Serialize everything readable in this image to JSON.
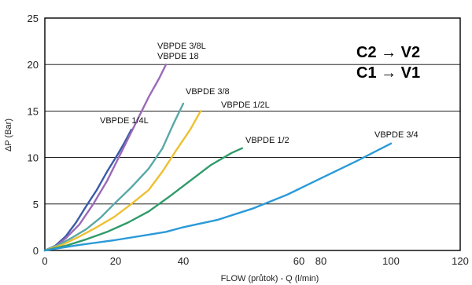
{
  "chart_data": {
    "type": "line",
    "xlabel": "FLOW (průtok) - Q (l/min)",
    "ylabel": "ΔP (Bar)",
    "ylim": [
      0,
      25
    ],
    "grid": "horizontal",
    "x_tick_labels": [
      "0",
      "20",
      "40",
      "60",
      "80",
      "100",
      "120"
    ],
    "y_tick_labels": [
      "0",
      "5",
      "10",
      "15",
      "20",
      "25"
    ],
    "annotations": [
      "C2 → V2",
      "C1 → V1"
    ],
    "series": [
      {
        "name": "VBPDE 1/4L",
        "color": "#3a5aa8",
        "points": [
          [
            0,
            0
          ],
          [
            3,
            0.5
          ],
          [
            6,
            1.5
          ],
          [
            9,
            3.0
          ],
          [
            12,
            4.8
          ],
          [
            15,
            6.5
          ],
          [
            18,
            8.5
          ],
          [
            21,
            10.3
          ],
          [
            23,
            11.6
          ],
          [
            25,
            13.0
          ]
        ]
      },
      {
        "name": "VBPDE 3/8L",
        "name2": "VBPDE 18",
        "color": "#9a6ab8",
        "points": [
          [
            0,
            0
          ],
          [
            3,
            0.4
          ],
          [
            6,
            1.3
          ],
          [
            10,
            2.8
          ],
          [
            14,
            5.0
          ],
          [
            18,
            7.5
          ],
          [
            22,
            10.5
          ],
          [
            26,
            13.5
          ],
          [
            30,
            16.5
          ],
          [
            33,
            18.5
          ],
          [
            35,
            20.0
          ]
        ]
      },
      {
        "name": "VBPDE 3/8",
        "color": "#5aa8a8",
        "points": [
          [
            0,
            0
          ],
          [
            4,
            0.6
          ],
          [
            8,
            1.4
          ],
          [
            12,
            2.3
          ],
          [
            16,
            3.5
          ],
          [
            20,
            5.0
          ],
          [
            25,
            6.8
          ],
          [
            30,
            8.8
          ],
          [
            34,
            11.0
          ],
          [
            37,
            13.5
          ],
          [
            40,
            15.8
          ]
        ]
      },
      {
        "name": "VBPDE 1/2L",
        "color": "#eec030",
        "points": [
          [
            0,
            0
          ],
          [
            5,
            0.6
          ],
          [
            10,
            1.5
          ],
          [
            15,
            2.5
          ],
          [
            20,
            3.6
          ],
          [
            25,
            5.0
          ],
          [
            30,
            6.5
          ],
          [
            34,
            8.5
          ],
          [
            38,
            10.8
          ],
          [
            42,
            13.0
          ],
          [
            45,
            15.0
          ]
        ]
      },
      {
        "name": "VBPDE 1/2",
        "color": "#2e9a6a",
        "points": [
          [
            0,
            0
          ],
          [
            6,
            0.5
          ],
          [
            12,
            1.2
          ],
          [
            18,
            2.0
          ],
          [
            24,
            3.0
          ],
          [
            30,
            4.2
          ],
          [
            36,
            5.8
          ],
          [
            42,
            7.5
          ],
          [
            48,
            9.2
          ],
          [
            54,
            10.5
          ],
          [
            57,
            11.0
          ]
        ]
      },
      {
        "name": "VBPDE 3/4",
        "color": "#2a9ad8",
        "points": [
          [
            0,
            0
          ],
          [
            10,
            0.6
          ],
          [
            20,
            1.1
          ],
          [
            30,
            1.7
          ],
          [
            35,
            2.0
          ],
          [
            40,
            2.5
          ],
          [
            50,
            3.3
          ],
          [
            60,
            4.5
          ],
          [
            70,
            6.0
          ],
          [
            80,
            7.8
          ],
          [
            90,
            9.6
          ],
          [
            100,
            11.5
          ]
        ]
      }
    ]
  }
}
